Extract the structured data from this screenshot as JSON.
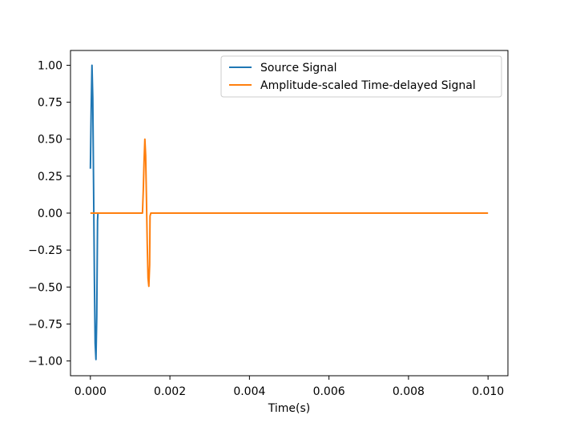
{
  "chart_data": {
    "type": "line",
    "title": "",
    "xlabel": "Time(s)",
    "ylabel": "",
    "xlim": [
      -0.0005,
      0.0105
    ],
    "ylim": [
      -1.1,
      1.1
    ],
    "xticks": [
      0.0,
      0.002,
      0.004,
      0.006,
      0.008,
      0.01
    ],
    "xtick_labels": [
      "0.000",
      "0.002",
      "0.004",
      "0.006",
      "0.008",
      "0.010"
    ],
    "yticks": [
      1.0,
      0.75,
      0.5,
      0.25,
      0.0,
      -0.25,
      -0.5,
      -0.75,
      -1.0
    ],
    "ytick_labels": [
      "1.00",
      "0.75",
      "0.50",
      "0.25",
      "0.00",
      "−0.25",
      "−0.50",
      "−0.75",
      "−1.00"
    ],
    "grid": false,
    "legend_position": "top-right",
    "series": [
      {
        "name": "Source Signal",
        "color": "#1f77b4",
        "points": [
          [
            0.0,
            0.3
          ],
          [
            2e-05,
            0.7
          ],
          [
            4e-05,
            1.0
          ],
          [
            6e-05,
            0.78
          ],
          [
            8e-05,
            0.2
          ],
          [
            0.0001,
            -0.42
          ],
          [
            0.00012,
            -0.88
          ],
          [
            0.00014,
            -0.99
          ],
          [
            0.00016,
            -0.7
          ],
          [
            0.00018,
            -0.05
          ],
          [
            0.00019,
            0.0
          ],
          [
            0.0002,
            0.0
          ],
          [
            0.00021,
            0.0
          ]
        ]
      },
      {
        "name": "Amplitude-scaled Time-delayed Signal",
        "color": "#ff7f0e",
        "points": [
          [
            0.0,
            0.0
          ],
          [
            0.00131,
            0.0
          ],
          [
            0.00133,
            0.15
          ],
          [
            0.00135,
            0.35
          ],
          [
            0.00137,
            0.5
          ],
          [
            0.00139,
            0.39
          ],
          [
            0.00141,
            0.1
          ],
          [
            0.00143,
            -0.21
          ],
          [
            0.00145,
            -0.44
          ],
          [
            0.00147,
            -0.495
          ],
          [
            0.00149,
            -0.35
          ],
          [
            0.0015,
            -0.02
          ],
          [
            0.00152,
            0.0
          ],
          [
            0.01,
            0.0
          ]
        ]
      }
    ]
  }
}
